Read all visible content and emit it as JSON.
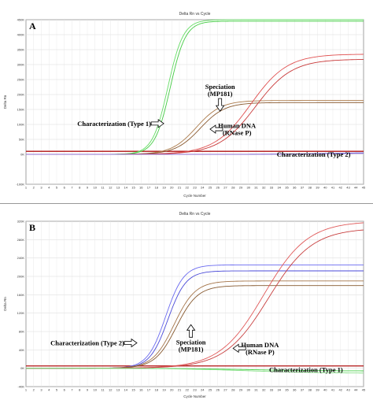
{
  "chart_data": [
    {
      "type": "line",
      "panel_letter": "A",
      "title": "Delta Rn vs Cycle",
      "xlabel": "Cycle Number",
      "ylabel": "Delta Rn",
      "xlim": [
        1,
        45
      ],
      "ylim": [
        -100000,
        450000
      ],
      "x_ticks": [
        1,
        2,
        3,
        4,
        5,
        6,
        7,
        8,
        9,
        10,
        11,
        12,
        13,
        14,
        15,
        16,
        17,
        18,
        19,
        20,
        21,
        22,
        23,
        24,
        25,
        26,
        27,
        28,
        29,
        30,
        31,
        32,
        33,
        34,
        35,
        36,
        37,
        38,
        39,
        40,
        41,
        42,
        43,
        44,
        45
      ],
      "y_ticks": [
        {
          "value": -100000,
          "label": "-100K"
        },
        {
          "value": 0,
          "label": "0K"
        },
        {
          "value": 50000,
          "label": "50K"
        },
        {
          "value": 100000,
          "label": "100K"
        },
        {
          "value": 150000,
          "label": "150K"
        },
        {
          "value": 200000,
          "label": "200K"
        },
        {
          "value": 250000,
          "label": "250K"
        },
        {
          "value": 300000,
          "label": "300K"
        },
        {
          "value": 350000,
          "label": "350K"
        },
        {
          "value": 400000,
          "label": "400K"
        },
        {
          "value": 450000,
          "label": "450K"
        }
      ],
      "grid": true,
      "threshold": {
        "value": 10000,
        "color": "#b01010"
      },
      "series": [
        {
          "color": "#66dd66",
          "plateau": 450000,
          "midpoint": 19.5,
          "slope": 1.0,
          "base": 0
        },
        {
          "color": "#44cc44",
          "plateau": 445000,
          "midpoint": 19.8,
          "slope": 1.0,
          "base": 0
        },
        {
          "color": "#ab7a4a",
          "plateau": 180000,
          "midpoint": 23.2,
          "slope": 0.62,
          "base": 0
        },
        {
          "color": "#8a5a30",
          "plateau": 173000,
          "midpoint": 23.7,
          "slope": 0.62,
          "base": 0
        },
        {
          "color": "#e05050",
          "plateau": 335000,
          "midpoint": 30.3,
          "slope": 0.42,
          "base": 0
        },
        {
          "color": "#c83838",
          "plateau": 318000,
          "midpoint": 30.9,
          "slope": 0.42,
          "base": 0
        },
        {
          "color": "#5a5adc",
          "plateau": 6000,
          "midpoint": 40,
          "slope": 0.3,
          "base": 0
        },
        {
          "color": "#8f6fcf",
          "plateau": 4000,
          "midpoint": 40,
          "slope": 0.3,
          "base": 0
        }
      ],
      "annotations": [
        {
          "lines": [
            "Characterization (Type 1)"
          ],
          "x": 12.5,
          "y": 95000,
          "arrow": "right"
        },
        {
          "lines": [
            "Speciation",
            "(MP181)"
          ],
          "x": 26.3,
          "y": 218000,
          "arrow": "down"
        },
        {
          "lines": [
            "Human DNA",
            "(RNase P)"
          ],
          "x": 28.5,
          "y": 88000,
          "arrow": "left"
        },
        {
          "lines": [
            "Characterization (Type 2)"
          ],
          "x": 38.5,
          "y": -8000,
          "arrow": "none"
        }
      ]
    },
    {
      "type": "line",
      "panel_letter": "B",
      "title": "Delta Rn vs Cycle",
      "xlabel": "Cycle Number",
      "ylabel": "Delta Rn",
      "xlim": [
        1,
        45
      ],
      "ylim": [
        -40000,
        320000
      ],
      "x_ticks": [
        1,
        2,
        3,
        4,
        5,
        6,
        7,
        8,
        9,
        10,
        11,
        12,
        13,
        14,
        15,
        16,
        17,
        18,
        19,
        20,
        21,
        22,
        23,
        24,
        25,
        26,
        27,
        28,
        29,
        30,
        31,
        32,
        33,
        34,
        35,
        36,
        37,
        38,
        39,
        40,
        41,
        42,
        43,
        44,
        45
      ],
      "y_ticks": [
        {
          "value": -40000,
          "label": "-40K"
        },
        {
          "value": 0,
          "label": "0K"
        },
        {
          "value": 40000,
          "label": "40K"
        },
        {
          "value": 80000,
          "label": "80K"
        },
        {
          "value": 120000,
          "label": "120K"
        },
        {
          "value": 160000,
          "label": "160K"
        },
        {
          "value": 200000,
          "label": "200K"
        },
        {
          "value": 240000,
          "label": "240K"
        },
        {
          "value": 280000,
          "label": "280K"
        },
        {
          "value": 320000,
          "label": "320K"
        }
      ],
      "grid": true,
      "threshold": {
        "value": 5000,
        "color": "#b01010"
      },
      "series": [
        {
          "color": "#6a6af0",
          "plateau": 225000,
          "midpoint": 19.2,
          "slope": 0.85,
          "base": 0
        },
        {
          "color": "#4a4ad8",
          "plateau": 212000,
          "midpoint": 19.5,
          "slope": 0.85,
          "base": 0
        },
        {
          "color": "#a47448",
          "plateau": 190000,
          "midpoint": 20.3,
          "slope": 0.72,
          "base": 0
        },
        {
          "color": "#86582e",
          "plateau": 180000,
          "midpoint": 20.6,
          "slope": 0.72,
          "base": 0
        },
        {
          "color": "#e05a5a",
          "plateau": 320000,
          "midpoint": 32.0,
          "slope": 0.35,
          "base": 0
        },
        {
          "color": "#c84040",
          "plateau": 305000,
          "midpoint": 32.6,
          "slope": 0.35,
          "base": 0
        },
        {
          "color": "#44cc44",
          "plateau": -6000,
          "midpoint": 30,
          "slope": 0.2,
          "base": 0
        },
        {
          "color": "#88e088",
          "plateau": -11000,
          "midpoint": 30,
          "slope": 0.2,
          "base": 0
        }
      ],
      "annotations": [
        {
          "lines": [
            "Characterization (Type 2)"
          ],
          "x": 9.0,
          "y": 50000,
          "arrow": "right"
        },
        {
          "lines": [
            "Speciation",
            "(MP181)"
          ],
          "x": 22.5,
          "y": 52000,
          "arrow": "up"
        },
        {
          "lines": [
            "Human DNA",
            "(RNase P)"
          ],
          "x": 31.5,
          "y": 46000,
          "arrow": "left"
        },
        {
          "lines": [
            "Characterization (Type 1)"
          ],
          "x": 37.5,
          "y": -8000,
          "arrow": "none"
        }
      ]
    }
  ]
}
